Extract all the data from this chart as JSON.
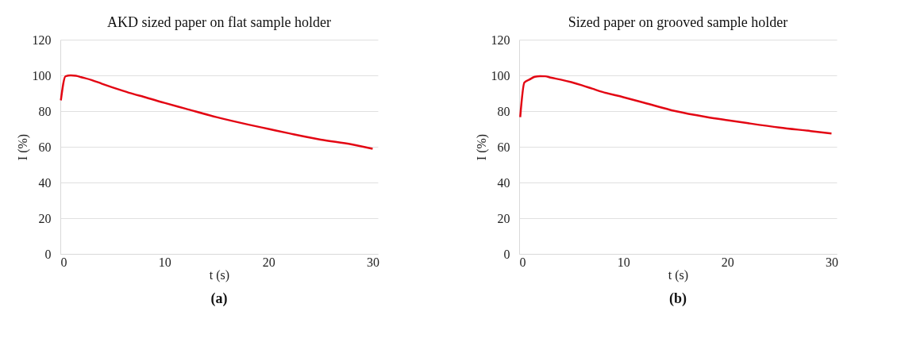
{
  "chart_data": [
    {
      "type": "line",
      "title": "AKD sized paper on flat sample holder",
      "xlabel": "t (s)",
      "ylabel": "I (%)",
      "series": [
        {
          "color": "#e30613",
          "x": [
            0.05,
            0.5,
            1,
            1.5,
            2,
            3,
            4,
            5,
            6,
            7,
            8,
            10,
            12,
            15,
            18,
            20,
            22,
            25,
            28,
            30
          ],
          "values": [
            86,
            99.5,
            100,
            99.8,
            99,
            97.4,
            95.3,
            93.3,
            91.4,
            89.6,
            88,
            84.6,
            81.4,
            76.6,
            72.5,
            70,
            67.5,
            64,
            61.3,
            58.9
          ]
        }
      ],
      "xlim": [
        0,
        30.5
      ],
      "xticks": [
        0,
        10,
        20,
        30
      ],
      "ylim": [
        0,
        120
      ],
      "yticks": [
        0,
        20,
        40,
        60,
        80,
        100,
        120
      ],
      "grid": "y",
      "annotations": [
        "(a)"
      ]
    },
    {
      "type": "line",
      "title": "Sized paper on grooved sample holder",
      "xlabel": "t (s)",
      "ylabel": "I (%)",
      "series": [
        {
          "color": "#e30613",
          "x": [
            0.1,
            0.5,
            1,
            1.5,
            2,
            2.5,
            3,
            4,
            5,
            6,
            7,
            8,
            10,
            12,
            15,
            18,
            20,
            22,
            25,
            28,
            30
          ],
          "values": [
            76.6,
            96,
            97.7,
            99.2,
            99.6,
            99.5,
            98.8,
            97.6,
            96.2,
            94.5,
            92.6,
            90.7,
            87.8,
            84.7,
            80,
            76.7,
            74.9,
            73.2,
            70.8,
            68.8,
            67.4
          ]
        }
      ],
      "xlim": [
        0,
        30.5
      ],
      "xticks": [
        0,
        10,
        20,
        30
      ],
      "ylim": [
        0,
        120
      ],
      "yticks": [
        0,
        20,
        40,
        60,
        80,
        100,
        120
      ],
      "grid": "y",
      "annotations": [
        "(b)"
      ]
    }
  ]
}
